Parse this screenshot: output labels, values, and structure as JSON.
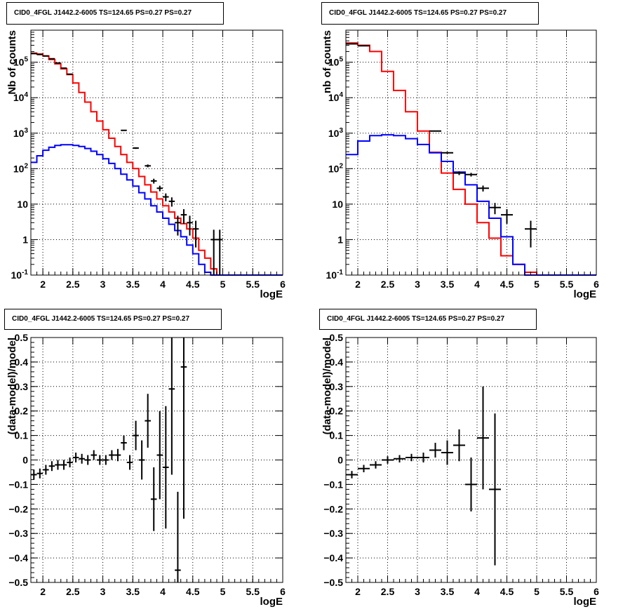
{
  "chart_data": [
    {
      "type": "line",
      "title": "CID0_4FGL J1442.2-6005 TS=124.65 PS=0.27 PS=0.27",
      "xlabel": "logE",
      "ylabel": "Nb of counts",
      "yscale": "log",
      "xlim": [
        1.8,
        6.0
      ],
      "ylim": [
        0.1,
        800000
      ],
      "xticks": [
        "2",
        "2.5",
        "3",
        "3.5",
        "4",
        "4.5",
        "5",
        "5.5",
        "6"
      ],
      "yticks": [
        "10^{-1}",
        "1",
        "10",
        "10^{2}",
        "10^{3}",
        "10^{4}",
        "10^{5}"
      ],
      "grid": true,
      "bin_edges": [
        1.8,
        1.9,
        2.0,
        2.1,
        2.2,
        2.3,
        2.4,
        2.5,
        2.6,
        2.7,
        2.8,
        2.9,
        3.0,
        3.1,
        3.2,
        3.3,
        3.4,
        3.5,
        3.6,
        3.7,
        3.8,
        3.9,
        4.0,
        4.1,
        4.2,
        4.3,
        4.4,
        4.5,
        4.6,
        4.7,
        4.8,
        4.9,
        5.0,
        5.1,
        5.2,
        5.3,
        5.4,
        5.5,
        5.6,
        5.7,
        5.8,
        5.9,
        6.0
      ],
      "series": [
        {
          "color": "#ff0000",
          "values": [
            180000,
            170000,
            150000,
            120000,
            90000,
            65000,
            45000,
            26000,
            14000,
            7500,
            4000,
            2200,
            1250,
            720,
            420,
            250,
            150,
            100,
            60,
            35,
            22,
            14,
            9,
            6,
            4,
            2.8,
            2,
            1.1,
            0.5,
            0.3,
            0.15,
            0.1,
            0.1,
            0.1,
            0.1,
            0.1,
            0.1,
            0.1,
            0.1,
            0.1,
            0.1,
            0.1
          ]
        },
        {
          "color": "#0000ff",
          "values": [
            150,
            230,
            330,
            400,
            450,
            470,
            470,
            450,
            420,
            370,
            310,
            250,
            190,
            140,
            100,
            70,
            48,
            32,
            21,
            14,
            9,
            6,
            4,
            2.7,
            1.8,
            1.2,
            0.7,
            0.4,
            0.2,
            0.12,
            0.1,
            0.1,
            0.1,
            0.1,
            0.1,
            0.1,
            0.1,
            0.1,
            0.1,
            0.1,
            0.1,
            0.1
          ]
        }
      ],
      "points": [
        {
          "x": 1.85,
          "y": 175000,
          "ey": 400
        },
        {
          "x": 1.95,
          "y": 165000,
          "ey": 400
        },
        {
          "x": 2.05,
          "y": 150000,
          "ey": 380
        },
        {
          "x": 2.15,
          "y": 125000,
          "ey": 350
        },
        {
          "x": 2.25,
          "y": 95000,
          "ey": 300
        },
        {
          "x": 2.35,
          "y": 68000,
          "ey": 260
        },
        {
          "x": 2.45,
          "y": 46000,
          "ey": 210
        },
        {
          "x": 3.35,
          "y": 1200,
          "ey": 35
        },
        {
          "x": 3.55,
          "y": 380,
          "ey": 20
        },
        {
          "x": 3.75,
          "y": 120,
          "ey": 11
        },
        {
          "x": 3.85,
          "y": 45,
          "ey": 7
        },
        {
          "x": 3.95,
          "y": 28,
          "ey": 5
        },
        {
          "x": 4.05,
          "y": 16,
          "ey": 4
        },
        {
          "x": 4.15,
          "y": 12,
          "ey": 3.5
        },
        {
          "x": 4.25,
          "y": 3,
          "ey": 1.7
        },
        {
          "x": 4.35,
          "y": 5,
          "ey": 2.2
        },
        {
          "x": 4.45,
          "y": 3,
          "ey": 1.7
        },
        {
          "x": 4.55,
          "y": 2,
          "ey": 1.4
        },
        {
          "x": 4.85,
          "y": 1,
          "ey": 0.9
        },
        {
          "x": 4.95,
          "y": 1,
          "ey": 0.9
        }
      ]
    },
    {
      "type": "line",
      "title": "CID0_4FGL J1442.2-6005 TS=124.65 PS=0.27 PS=0.27",
      "xlabel": "logE",
      "ylabel": "nb of counts",
      "yscale": "log",
      "xlim": [
        1.8,
        6.0
      ],
      "ylim": [
        0.1,
        800000
      ],
      "xticks": [
        "2",
        "2.5",
        "3",
        "3.5",
        "4",
        "4.5",
        "5",
        "5.5",
        "6"
      ],
      "yticks": [
        "10^{-1}",
        "1",
        "10",
        "10^{2}",
        "10^{3}",
        "10^{4}",
        "10^{5}"
      ],
      "grid": true,
      "bin_edges": [
        1.8,
        2.0,
        2.2,
        2.4,
        2.6,
        2.8,
        3.0,
        3.2,
        3.4,
        3.6,
        3.8,
        4.0,
        4.2,
        4.4,
        4.6,
        4.8,
        5.0,
        5.2,
        5.4,
        5.6,
        5.8,
        6.0
      ],
      "series": [
        {
          "color": "#ff0000",
          "values": [
            350000,
            300000,
            200000,
            55000,
            16000,
            4000,
            1150,
            290,
            75,
            26,
            10,
            3,
            1.1,
            0.35,
            0.2,
            0.12,
            0.1,
            0.1,
            0.1,
            0.1,
            0.1
          ]
        },
        {
          "color": "#0000ff",
          "values": [
            250,
            600,
            850,
            900,
            850,
            700,
            480,
            280,
            160,
            80,
            35,
            12,
            4,
            1.2,
            0.2,
            0.1,
            0.1,
            0.1,
            0.1,
            0.1,
            0.1
          ]
        }
      ],
      "points": [
        {
          "x": 1.9,
          "y": 330000,
          "ey": 600
        },
        {
          "x": 2.1,
          "y": 290000,
          "ey": 540
        },
        {
          "x": 3.3,
          "y": 1150,
          "ey": 34
        },
        {
          "x": 3.5,
          "y": 280,
          "ey": 17
        },
        {
          "x": 3.7,
          "y": 75,
          "ey": 9
        },
        {
          "x": 3.9,
          "y": 68,
          "ey": 8
        },
        {
          "x": 4.1,
          "y": 28,
          "ey": 5.3
        },
        {
          "x": 4.3,
          "y": 8,
          "ey": 2.8
        },
        {
          "x": 4.5,
          "y": 5,
          "ey": 2.2
        },
        {
          "x": 4.9,
          "y": 2,
          "ey": 1.4
        }
      ]
    },
    {
      "type": "scatter",
      "title": "CID0_4FGL J1442.2-6005 TS=124.65 PS=0.27 PS=0.27",
      "xlabel": "logE",
      "ylabel": "(data-model)/model",
      "xlim": [
        1.8,
        6.0
      ],
      "ylim": [
        -0.5,
        0.5
      ],
      "xticks": [
        "2",
        "2.5",
        "3",
        "3.5",
        "4",
        "4.5",
        "5",
        "5.5",
        "6"
      ],
      "yticks": [
        "−0.5",
        "−0.4",
        "−0.3",
        "−0.2",
        "−0.1",
        "0",
        "0.1",
        "0.2",
        "0.3",
        "0.4",
        "0.5"
      ],
      "grid": true,
      "points": [
        {
          "x": 1.85,
          "y": -0.06,
          "ey": 0.02
        },
        {
          "x": 1.95,
          "y": -0.055,
          "ey": 0.02
        },
        {
          "x": 2.05,
          "y": -0.04,
          "ey": 0.02
        },
        {
          "x": 2.15,
          "y": -0.025,
          "ey": 0.02
        },
        {
          "x": 2.25,
          "y": -0.02,
          "ey": 0.02
        },
        {
          "x": 2.35,
          "y": -0.02,
          "ey": 0.02
        },
        {
          "x": 2.45,
          "y": -0.01,
          "ey": 0.02
        },
        {
          "x": 2.55,
          "y": 0.01,
          "ey": 0.02
        },
        {
          "x": 2.65,
          "y": 0.005,
          "ey": 0.02
        },
        {
          "x": 2.75,
          "y": 0.0,
          "ey": 0.02
        },
        {
          "x": 2.85,
          "y": 0.02,
          "ey": 0.02
        },
        {
          "x": 2.95,
          "y": 0.0,
          "ey": 0.02
        },
        {
          "x": 3.05,
          "y": 0.0,
          "ey": 0.02
        },
        {
          "x": 3.15,
          "y": 0.02,
          "ey": 0.02
        },
        {
          "x": 3.25,
          "y": 0.02,
          "ey": 0.025
        },
        {
          "x": 3.35,
          "y": 0.07,
          "ey": 0.03
        },
        {
          "x": 3.45,
          "y": -0.01,
          "ey": 0.03
        },
        {
          "x": 3.55,
          "y": 0.1,
          "ey": 0.06
        },
        {
          "x": 3.65,
          "y": 0.0,
          "ey": 0.08
        },
        {
          "x": 3.75,
          "y": 0.16,
          "ey": 0.11
        },
        {
          "x": 3.85,
          "y": -0.16,
          "ey": 0.13
        },
        {
          "x": 3.95,
          "y": 0.02,
          "ey": 0.18
        },
        {
          "x": 4.05,
          "y": -0.03,
          "ey": 0.25
        },
        {
          "x": 4.15,
          "y": 0.29,
          "ey": 0.35
        },
        {
          "x": 4.25,
          "y": -0.45,
          "ey": 0.32
        },
        {
          "x": 4.35,
          "y": 0.38,
          "ey": 0.62
        }
      ]
    },
    {
      "type": "scatter",
      "title": "CID0_4FGL J1442.2-6005 TS=124.65 PS=0.27 PS=0.27",
      "xlabel": "logE",
      "ylabel": "(data-model)/model",
      "xlim": [
        1.8,
        6.0
      ],
      "ylim": [
        -0.5,
        0.5
      ],
      "xticks": [
        "2",
        "2.5",
        "3",
        "3.5",
        "4",
        "4.5",
        "5",
        "5.5",
        "6"
      ],
      "yticks": [
        "−0.5",
        "−0.4",
        "−0.3",
        "−0.2",
        "−0.1",
        "0",
        "0.1",
        "0.2",
        "0.3",
        "0.4",
        "0.5"
      ],
      "grid": true,
      "points": [
        {
          "x": 1.9,
          "y": -0.06,
          "ey": 0.015
        },
        {
          "x": 2.1,
          "y": -0.035,
          "ey": 0.015
        },
        {
          "x": 2.3,
          "y": -0.02,
          "ey": 0.015
        },
        {
          "x": 2.5,
          "y": 0.0,
          "ey": 0.015
        },
        {
          "x": 2.7,
          "y": 0.005,
          "ey": 0.015
        },
        {
          "x": 2.9,
          "y": 0.01,
          "ey": 0.015
        },
        {
          "x": 3.1,
          "y": 0.01,
          "ey": 0.02
        },
        {
          "x": 3.3,
          "y": 0.04,
          "ey": 0.03
        },
        {
          "x": 3.5,
          "y": 0.03,
          "ey": 0.05
        },
        {
          "x": 3.7,
          "y": 0.06,
          "ey": 0.065
        },
        {
          "x": 3.9,
          "y": -0.1,
          "ey": 0.11
        },
        {
          "x": 4.1,
          "y": 0.09,
          "ey": 0.21
        },
        {
          "x": 4.3,
          "y": -0.12,
          "ey": 0.31
        }
      ]
    }
  ]
}
